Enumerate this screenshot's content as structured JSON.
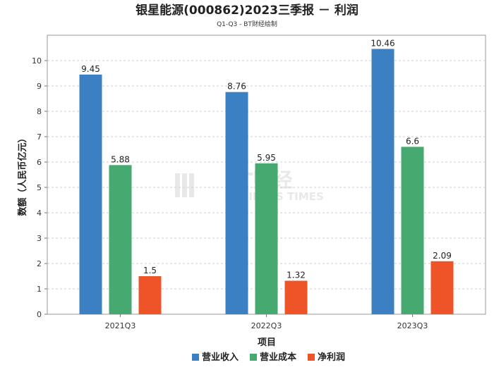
{
  "chart_data": {
    "type": "bar",
    "title": "银星能源(000862)2023三季报 － 利润",
    "subtitle": "Q1-Q3 - BT财经绘制",
    "xlabel": "项目",
    "ylabel": "数额（人民币亿元）",
    "categories": [
      "2021Q3",
      "2022Q3",
      "2023Q3"
    ],
    "ylim": [
      0,
      11
    ],
    "yticks": [
      0,
      1,
      2,
      3,
      4,
      5,
      6,
      7,
      8,
      9,
      10
    ],
    "grid": true,
    "legend_position": "bottom",
    "series": [
      {
        "name": "营业收入",
        "values": [
          9.45,
          8.76,
          10.46
        ],
        "labels": [
          "9.45",
          "8.76",
          "10.46"
        ],
        "color": "#3a80c2"
      },
      {
        "name": "营业成本",
        "values": [
          5.88,
          5.95,
          6.6
        ],
        "labels": [
          "5.88",
          "5.95",
          "6.6"
        ],
        "color": "#46a96f"
      },
      {
        "name": "净利润",
        "values": [
          1.5,
          1.32,
          2.09
        ],
        "labels": [
          "1.5",
          "1.32",
          "2.09"
        ],
        "color": "#ee5428"
      }
    ]
  },
  "watermark": {
    "logo": "BT财经",
    "subtext": "BUSINESS TIMES"
  }
}
